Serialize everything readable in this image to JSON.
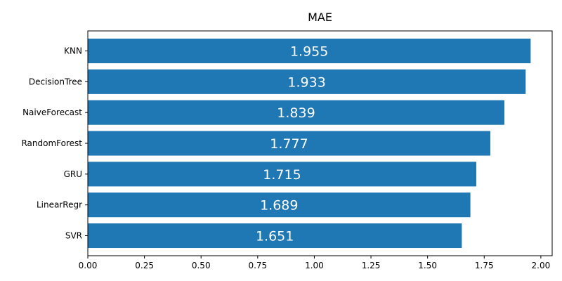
{
  "chart_data": {
    "type": "bar",
    "orientation": "horizontal",
    "title": "MAE",
    "xlabel": "",
    "ylabel": "",
    "categories": [
      "KNN",
      "DecisionTree",
      "NaiveForecast",
      "RandomForest",
      "GRU",
      "LinearRegr",
      "SVR"
    ],
    "values": [
      1.955,
      1.933,
      1.839,
      1.777,
      1.715,
      1.689,
      1.651
    ],
    "data_labels": [
      "1.955",
      "1.933",
      "1.839",
      "1.777",
      "1.715",
      "1.689",
      "1.651"
    ],
    "xlim": [
      0,
      2.05
    ],
    "xticks": [
      0,
      0.25,
      0.5,
      0.75,
      1.0,
      1.25,
      1.5,
      1.75,
      2.0
    ],
    "xtick_labels": [
      "0.00",
      "0.25",
      "0.50",
      "0.75",
      "1.00",
      "1.25",
      "1.50",
      "1.75",
      "2.00"
    ],
    "bar_color": "#1f77b4",
    "data_label_color": "#ffffff",
    "grid": false,
    "legend": "none"
  }
}
